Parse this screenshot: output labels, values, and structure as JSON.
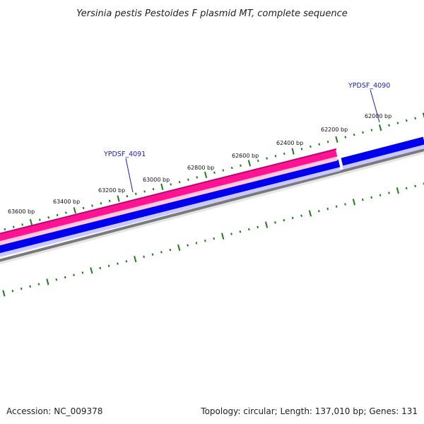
{
  "title": "Yersinia pestis Pestoides F plasmid MT, complete sequence",
  "footer": {
    "accession": "Accession: NC_009378",
    "summary": "Topology: circular; Length: 137,010 bp; Genes: 131"
  },
  "ruler": {
    "labels": [
      "62000 bp",
      "62200 bp",
      "62400 bp",
      "62600 bp",
      "62800 bp",
      "63000 bp",
      "63200 bp",
      "63400 bp",
      "63600 bp"
    ]
  },
  "genes": [
    {
      "name": "YPDSF_4090",
      "color": "#0000ee"
    },
    {
      "name": "YPDSF_4091",
      "color": "#ff1493"
    }
  ],
  "colors": {
    "ruler_ticks": "#1f7a1f",
    "backbone": "#808080",
    "forward_strand": "#0000ee",
    "reverse_strand": "#ff1493",
    "label_text": "#1a1acc"
  }
}
